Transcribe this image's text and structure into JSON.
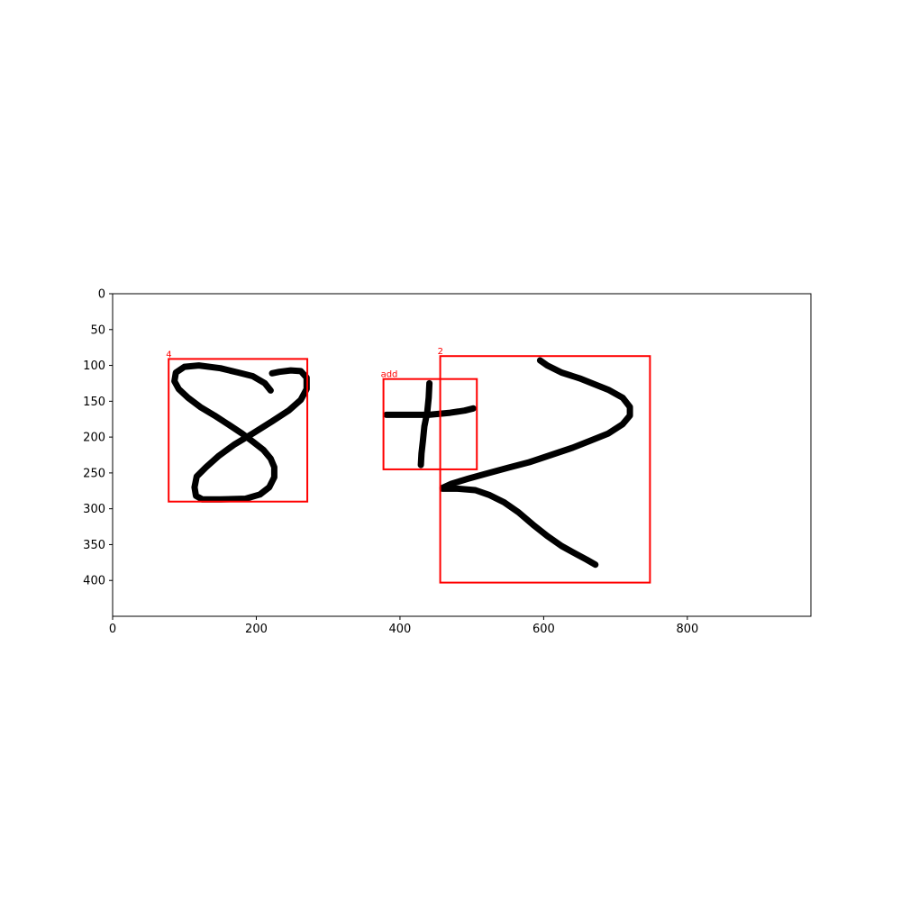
{
  "chart_data": {
    "type": "image-with-annotations",
    "xlim": [
      0,
      972
    ],
    "ylim": [
      450,
      0
    ],
    "x_ticks": [
      0,
      200,
      400,
      600,
      800
    ],
    "y_ticks": [
      0,
      50,
      100,
      150,
      200,
      250,
      300,
      350,
      400
    ],
    "grid": false,
    "box_color": "#ff0000",
    "stroke_color": "#000000",
    "boxes": [
      {
        "label": "4",
        "x0": 78,
        "y0": 91,
        "x1": 271,
        "y1": 290
      },
      {
        "label": "add",
        "x0": 377,
        "y0": 119,
        "x1": 507,
        "y1": 245
      },
      {
        "label": "2",
        "x0": 456,
        "y0": 87,
        "x1": 748,
        "y1": 403
      }
    ],
    "strokes": [
      [
        [
          220,
          135
        ],
        [
          212,
          125
        ],
        [
          195,
          115
        ],
        [
          175,
          110
        ],
        [
          150,
          104
        ],
        [
          120,
          100
        ],
        [
          100,
          102
        ],
        [
          88,
          110
        ],
        [
          86,
          122
        ],
        [
          92,
          133
        ],
        [
          105,
          145
        ],
        [
          122,
          158
        ],
        [
          142,
          170
        ],
        [
          162,
          183
        ],
        [
          180,
          195
        ],
        [
          196,
          207
        ],
        [
          210,
          218
        ],
        [
          220,
          230
        ],
        [
          225,
          242
        ],
        [
          225,
          256
        ],
        [
          218,
          270
        ],
        [
          205,
          280
        ],
        [
          185,
          286
        ],
        [
          150,
          287
        ],
        [
          125,
          287
        ],
        [
          116,
          282
        ],
        [
          114,
          270
        ],
        [
          117,
          255
        ],
        [
          130,
          242
        ],
        [
          148,
          226
        ],
        [
          170,
          210
        ],
        [
          195,
          195
        ],
        [
          222,
          178
        ],
        [
          245,
          163
        ],
        [
          262,
          148
        ],
        [
          270,
          133
        ],
        [
          270,
          117
        ],
        [
          262,
          108
        ],
        [
          248,
          107
        ],
        [
          232,
          109
        ],
        [
          222,
          111
        ]
      ],
      [
        [
          381,
          169
        ],
        [
          410,
          169
        ],
        [
          440,
          169
        ],
        [
          470,
          166
        ],
        [
          490,
          163
        ],
        [
          502,
          160
        ]
      ],
      [
        [
          441,
          125
        ],
        [
          440,
          145
        ],
        [
          438,
          165
        ],
        [
          434,
          185
        ],
        [
          432,
          205
        ],
        [
          430,
          223
        ],
        [
          429,
          239
        ]
      ],
      [
        [
          595,
          93
        ],
        [
          605,
          100
        ],
        [
          625,
          110
        ],
        [
          650,
          118
        ],
        [
          670,
          126
        ],
        [
          690,
          134
        ],
        [
          710,
          145
        ],
        [
          720,
          158
        ],
        [
          720,
          170
        ],
        [
          710,
          182
        ],
        [
          690,
          195
        ],
        [
          665,
          205
        ],
        [
          640,
          215
        ],
        [
          610,
          225
        ],
        [
          580,
          235
        ],
        [
          550,
          243
        ],
        [
          520,
          251
        ],
        [
          495,
          258
        ],
        [
          472,
          265
        ],
        [
          459,
          271
        ]
      ],
      [
        [
          459,
          272
        ],
        [
          480,
          272
        ],
        [
          505,
          274
        ],
        [
          525,
          281
        ],
        [
          545,
          291
        ],
        [
          565,
          305
        ],
        [
          585,
          322
        ],
        [
          605,
          338
        ],
        [
          625,
          352
        ],
        [
          645,
          363
        ],
        [
          660,
          371
        ],
        [
          672,
          378
        ]
      ]
    ]
  }
}
